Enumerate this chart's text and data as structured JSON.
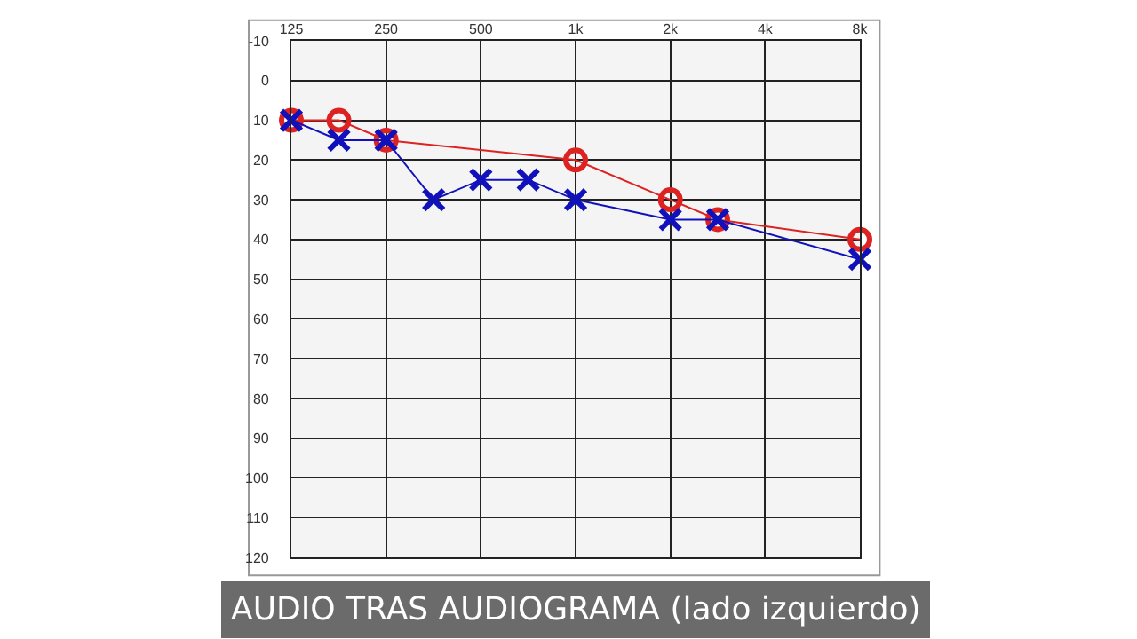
{
  "chart_data": {
    "type": "line",
    "series": [
      {
        "color": "#dd2222",
        "marker": "circle",
        "x": [
          125,
          177,
          250,
          1000,
          2000,
          2828,
          8000
        ],
        "values": [
          10,
          10,
          15,
          20,
          30,
          35,
          40
        ]
      },
      {
        "color": "#1111bb",
        "marker": "cross",
        "x": [
          125,
          177,
          250,
          354,
          500,
          707,
          1000,
          2000,
          2828,
          8000
        ],
        "values": [
          10,
          15,
          15,
          30,
          25,
          25,
          30,
          35,
          35,
          45
        ]
      }
    ],
    "log": "x",
    "xlim": [
      125,
      8000
    ],
    "xticks": [
      125,
      250,
      500,
      {
        "value": 1000,
        "label": "1k"
      },
      {
        "value": 2000,
        "label": "2k"
      },
      {
        "value": 4000,
        "label": "4k"
      },
      {
        "value": 8000,
        "label": "8k"
      }
    ],
    "ylim": [
      120,
      -10
    ],
    "yticks": [
      -10,
      0,
      10,
      20,
      30,
      40,
      50,
      60,
      70,
      80,
      90,
      100,
      110,
      120
    ],
    "grid": true,
    "annotations": [
      "AUDIO TRAS AUDIOGRAMA (lado izquierdo)"
    ]
  }
}
